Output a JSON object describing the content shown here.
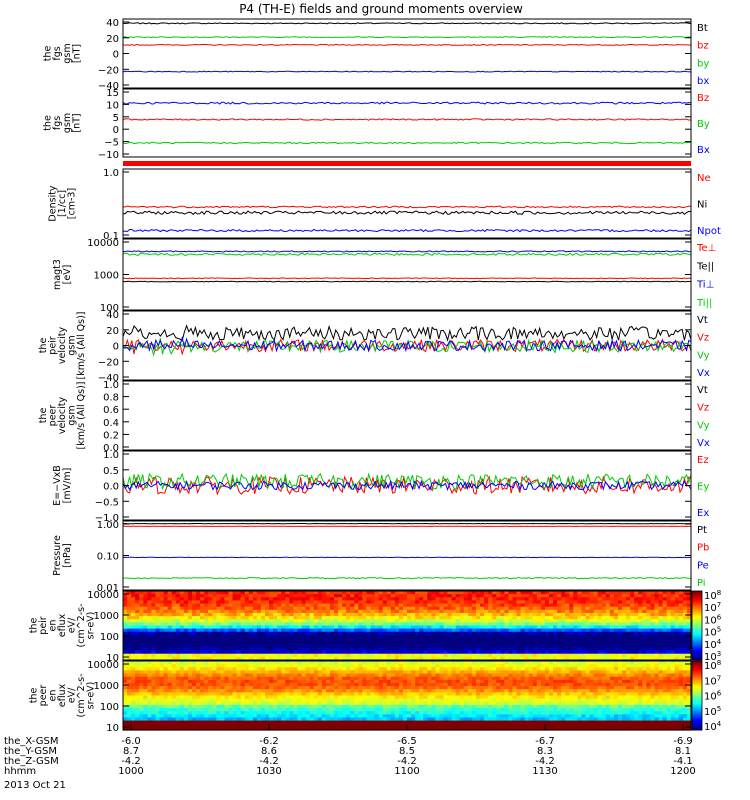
{
  "title": "P4 (TH-E) fields and ground moments overview",
  "colors": {
    "black": "#000000",
    "red": "#ff0000",
    "green": "#00cc00",
    "blue": "#0000ff"
  },
  "chart_data": [
    {
      "type": "line",
      "ylabel": [
        "the",
        "fgs",
        "gsm",
        "[nT]"
      ],
      "ylim": [
        -40,
        40
      ],
      "yticks": [
        "40",
        "20",
        "0",
        "−20",
        "−40"
      ],
      "series": [
        {
          "name": "Bt",
          "color": "black",
          "level": 35,
          "noise": 0.6
        },
        {
          "name": "bz",
          "color": "red",
          "level": 10,
          "noise": 0.5
        },
        {
          "name": "by",
          "color": "green",
          "level": 19,
          "noise": 0.5
        },
        {
          "name": "bx",
          "color": "blue",
          "level": -21,
          "noise": 0.5
        }
      ]
    },
    {
      "type": "line",
      "ylabel": [
        "the",
        "fgs",
        "gsm",
        "[nT]"
      ],
      "ylim": [
        -14,
        15
      ],
      "yticks": [
        "15",
        "10",
        "5",
        "0",
        "−5",
        "−10"
      ],
      "series": [
        {
          "name": "Bz",
          "color": "red",
          "level": 2,
          "noise": 0.3
        },
        {
          "name": "By",
          "color": "green",
          "level": -8,
          "noise": 0.3
        },
        {
          "name": "Bx",
          "color": "blue",
          "level": 9,
          "noise": 0.4
        }
      ]
    },
    {
      "type": "line",
      "ylabel": [
        "Density",
        "[1/cc]",
        "[cm-3]"
      ],
      "log": true,
      "ylim": [
        0.09,
        1.3
      ],
      "yticks": [
        "1.0",
        "0.1"
      ],
      "series": [
        {
          "name": "Ne",
          "color": "red",
          "level": 0.3,
          "noise": 0.01
        },
        {
          "name": "Ni",
          "color": "black",
          "level": 0.24,
          "noise": 0.015
        },
        {
          "name": "Npot",
          "color": "blue",
          "level": 0.12,
          "noise": 0.005
        }
      ]
    },
    {
      "type": "line",
      "ylabel": [
        "magt3",
        "[eV]"
      ],
      "log": true,
      "ylim": [
        100,
        12000
      ],
      "yticks": [
        "10000",
        "1000",
        "100"
      ],
      "series": [
        {
          "name": "Te⊥",
          "color": "red",
          "level": 850,
          "noise": 20
        },
        {
          "name": "Te||",
          "color": "black",
          "level": 680,
          "noise": 15
        },
        {
          "name": "Ti⊥",
          "color": "blue",
          "level": 5200,
          "noise": 200
        },
        {
          "name": "Ti||",
          "color": "green",
          "level": 4300,
          "noise": 300
        }
      ]
    },
    {
      "type": "line",
      "ylabel": [
        "the",
        "peir",
        "velocity",
        "gsm",
        "[km/s (All Qs)]"
      ],
      "ylim": [
        -40,
        40
      ],
      "yticks": [
        "40",
        "20",
        "0",
        "−20",
        "−40"
      ],
      "series": [
        {
          "name": "Vt",
          "color": "black",
          "level": 14,
          "noise": 8
        },
        {
          "name": "Vz",
          "color": "red",
          "level": 0,
          "noise": 7
        },
        {
          "name": "Vy",
          "color": "green",
          "level": -1,
          "noise": 7
        },
        {
          "name": "Vx",
          "color": "blue",
          "level": 0,
          "noise": 6
        }
      ]
    },
    {
      "type": "line",
      "ylabel": [
        "the",
        "peer",
        "velocity",
        "gsm",
        "[km/s (All Qs)]"
      ],
      "ylim": [
        0,
        1
      ],
      "yticks": [
        "1.0",
        "0.8",
        "0.6",
        "0.4",
        "0.2",
        "0.0"
      ],
      "series": [
        {
          "name": "Vt",
          "color": "black"
        },
        {
          "name": "Vz",
          "color": "red"
        },
        {
          "name": "Vy",
          "color": "green"
        },
        {
          "name": "Vx",
          "color": "blue"
        }
      ]
    },
    {
      "type": "line",
      "ylabel": [
        "E=−VxB",
        "[mV/m]"
      ],
      "ylim": [
        -1,
        1
      ],
      "yticks": [
        "1.0",
        "0.5",
        "0.0",
        "−0.5",
        "−1.0"
      ],
      "series": [
        {
          "name": "Ez",
          "color": "red",
          "level": 0,
          "noise": 0.25
        },
        {
          "name": "Ey",
          "color": "green",
          "level": 0.12,
          "noise": 0.22
        },
        {
          "name": "Ex",
          "color": "blue",
          "level": 0,
          "noise": 0.12
        }
      ]
    },
    {
      "type": "line",
      "ylabel": [
        "Pressure",
        "[nPa]"
      ],
      "log": true,
      "ylim": [
        0.01,
        1.6
      ],
      "yticks": [
        "1.00",
        "0.10",
        "0.01"
      ],
      "series": [
        {
          "name": "Pt",
          "color": "black",
          "level": 1.32,
          "noise": 0.01
        },
        {
          "name": "Pb",
          "color": "red",
          "level": 1.08,
          "noise": 0.008
        },
        {
          "name": "Pe",
          "color": "blue",
          "level": 0.11,
          "noise": 0.002
        },
        {
          "name": "Pi",
          "color": "green",
          "level": 0.024,
          "noise": 0.001
        }
      ]
    },
    {
      "type": "heatmap",
      "ylabel": [
        "the",
        "peir",
        "en",
        "eflux",
        "eV/",
        "(cm^2-s-",
        "sr-eV)"
      ],
      "log": true,
      "ylim": [
        5,
        30000
      ],
      "yticks": [
        "10000",
        "1000",
        "100",
        "10"
      ],
      "colorbar": {
        "ticks": [
          "10^8",
          "10^7",
          "10^6",
          "10^5",
          "10^4",
          "10^3"
        ]
      }
    },
    {
      "type": "heatmap",
      "ylabel": [
        "the",
        "peer",
        "en",
        "eflux",
        "eV/",
        "(cm^2-s-",
        "sr-eV)"
      ],
      "log": true,
      "ylim": [
        5,
        30000
      ],
      "yticks": [
        "10000",
        "1000",
        "100",
        "10"
      ],
      "colorbar": {
        "ticks": [
          "10^8",
          "10^7",
          "10^6",
          "10^5",
          "10^4"
        ]
      }
    }
  ],
  "xaxis": {
    "rows": [
      {
        "label": "the_X-GSM",
        "values": [
          "-6.0",
          "-6.2",
          "-6.5",
          "-6.7",
          "-6.9"
        ]
      },
      {
        "label": "the_Y-GSM",
        "values": [
          "8.7",
          "8.6",
          "8.5",
          "8.3",
          "8.1"
        ]
      },
      {
        "label": "the_Z-GSM",
        "values": [
          "-4.2",
          "-4.2",
          "-4.2",
          "-4.2",
          "-4.1"
        ]
      },
      {
        "label": "hhmm",
        "values": [
          "1000",
          "1030",
          "1100",
          "1130",
          "1200"
        ]
      }
    ],
    "date": "2013 Oct 21"
  }
}
